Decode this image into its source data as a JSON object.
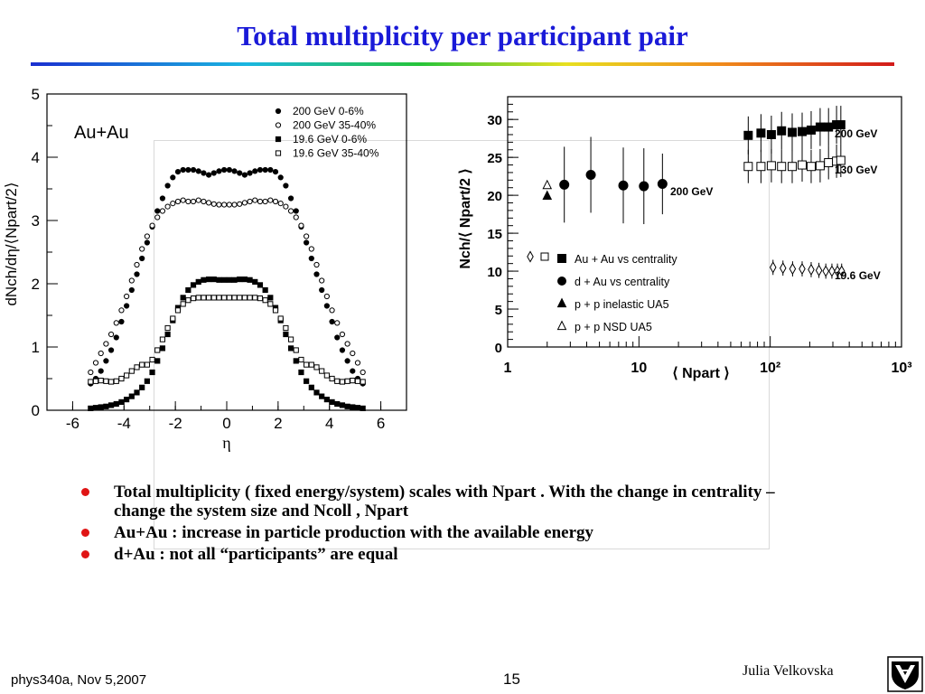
{
  "slide": {
    "title": "Total multiplicity per participant pair",
    "bullets": [
      "Total multiplicity ( fixed energy/system) scales with Npart . With the change in centrality – change the system size and Ncoll , Npart",
      "Au+Au : increase in particle production with the available energy",
      "d+Au :  not all “participants” are equal"
    ],
    "footer": {
      "course": "phys340a, Nov 5,2007",
      "page": "15",
      "author": "Julia Velkovska"
    },
    "colors": {
      "title": "#1a1ad8",
      "bullet": "#e01515"
    },
    "logo_icon": "university-shield-logo"
  },
  "chart_data": [
    {
      "type": "scatter",
      "label": "Au+Au",
      "xlabel": "η",
      "ylabel": "dNch/dη/⟨Npart/2⟩",
      "xlim": [
        -7,
        7
      ],
      "ylim": [
        0,
        5
      ],
      "xticks": [
        -6,
        -4,
        -2,
        0,
        2,
        4,
        6
      ],
      "yticks": [
        0,
        1,
        2,
        3,
        4,
        5
      ],
      "legend_position": "top-right",
      "series": [
        {
          "name": "200 GeV 0-6%",
          "marker": "filled-circle",
          "x": [
            -5.3,
            -5.1,
            -4.9,
            -4.7,
            -4.5,
            -4.3,
            -4.1,
            -3.9,
            -3.7,
            -3.5,
            -3.3,
            -3.1,
            -2.9,
            -2.7,
            -2.5,
            -2.3,
            -2.1,
            -1.9,
            -1.7,
            -1.5,
            -1.3,
            -1.1,
            -0.9,
            -0.7,
            -0.5,
            -0.3,
            -0.1,
            0.1,
            0.3,
            0.5,
            0.7,
            0.9,
            1.1,
            1.3,
            1.5,
            1.7,
            1.9,
            2.1,
            2.3,
            2.5,
            2.7,
            2.9,
            3.1,
            3.3,
            3.5,
            3.7,
            3.9,
            4.1,
            4.3,
            4.5,
            4.7,
            4.9,
            5.1,
            5.3
          ],
          "y": [
            0.42,
            0.5,
            0.62,
            0.78,
            0.95,
            1.15,
            1.4,
            1.65,
            1.9,
            2.15,
            2.4,
            2.65,
            2.9,
            3.15,
            3.35,
            3.55,
            3.68,
            3.77,
            3.8,
            3.8,
            3.8,
            3.78,
            3.75,
            3.72,
            3.75,
            3.78,
            3.8,
            3.8,
            3.78,
            3.75,
            3.72,
            3.75,
            3.78,
            3.8,
            3.8,
            3.8,
            3.77,
            3.68,
            3.55,
            3.35,
            3.15,
            2.9,
            2.65,
            2.4,
            2.15,
            1.9,
            1.65,
            1.4,
            1.15,
            0.95,
            0.78,
            0.62,
            0.5,
            0.42
          ]
        },
        {
          "name": "200 GeV 35-40%",
          "marker": "open-circle",
          "x": [
            -5.3,
            -5.1,
            -4.9,
            -4.7,
            -4.5,
            -4.3,
            -4.1,
            -3.9,
            -3.7,
            -3.5,
            -3.3,
            -3.1,
            -2.9,
            -2.7,
            -2.5,
            -2.3,
            -2.1,
            -1.9,
            -1.7,
            -1.5,
            -1.3,
            -1.1,
            -0.9,
            -0.7,
            -0.5,
            -0.3,
            -0.1,
            0.1,
            0.3,
            0.5,
            0.7,
            0.9,
            1.1,
            1.3,
            1.5,
            1.7,
            1.9,
            2.1,
            2.3,
            2.5,
            2.7,
            2.9,
            3.1,
            3.3,
            3.5,
            3.7,
            3.9,
            4.1,
            4.3,
            4.5,
            4.7,
            4.9,
            5.1,
            5.3
          ],
          "y": [
            0.6,
            0.75,
            0.9,
            1.05,
            1.2,
            1.38,
            1.58,
            1.8,
            2.05,
            2.3,
            2.55,
            2.75,
            2.92,
            3.05,
            3.15,
            3.22,
            3.27,
            3.3,
            3.32,
            3.3,
            3.3,
            3.32,
            3.3,
            3.28,
            3.26,
            3.25,
            3.25,
            3.25,
            3.25,
            3.26,
            3.28,
            3.3,
            3.32,
            3.3,
            3.3,
            3.32,
            3.3,
            3.27,
            3.22,
            3.15,
            3.05,
            2.92,
            2.75,
            2.55,
            2.3,
            2.05,
            1.8,
            1.58,
            1.38,
            1.2,
            1.05,
            0.9,
            0.75,
            0.6
          ]
        },
        {
          "name": "19.6 GeV 0-6%",
          "marker": "filled-square",
          "x": [
            -5.3,
            -5.1,
            -4.9,
            -4.7,
            -4.5,
            -4.3,
            -4.1,
            -3.9,
            -3.7,
            -3.5,
            -3.3,
            -3.1,
            -2.9,
            -2.7,
            -2.5,
            -2.3,
            -2.1,
            -1.9,
            -1.7,
            -1.5,
            -1.3,
            -1.1,
            -0.9,
            -0.7,
            -0.5,
            -0.3,
            -0.1,
            0.1,
            0.3,
            0.5,
            0.7,
            0.9,
            1.1,
            1.3,
            1.5,
            1.7,
            1.9,
            2.1,
            2.3,
            2.5,
            2.7,
            2.9,
            3.1,
            3.3,
            3.5,
            3.7,
            3.9,
            4.1,
            4.3,
            4.5,
            4.7,
            4.9,
            5.1,
            5.3
          ],
          "y": [
            0.03,
            0.04,
            0.05,
            0.06,
            0.08,
            0.1,
            0.13,
            0.17,
            0.22,
            0.28,
            0.36,
            0.46,
            0.6,
            0.78,
            0.98,
            1.2,
            1.42,
            1.62,
            1.78,
            1.9,
            1.98,
            2.03,
            2.06,
            2.07,
            2.07,
            2.06,
            2.06,
            2.06,
            2.06,
            2.07,
            2.07,
            2.06,
            2.03,
            1.98,
            1.9,
            1.78,
            1.62,
            1.42,
            1.2,
            0.98,
            0.78,
            0.6,
            0.46,
            0.36,
            0.28,
            0.22,
            0.17,
            0.13,
            0.1,
            0.08,
            0.06,
            0.05,
            0.04,
            0.03
          ]
        },
        {
          "name": "19.6 GeV 35-40%",
          "marker": "open-square",
          "x": [
            -5.3,
            -5.1,
            -4.9,
            -4.7,
            -4.5,
            -4.3,
            -4.1,
            -3.9,
            -3.7,
            -3.5,
            -3.3,
            -3.1,
            -2.9,
            -2.7,
            -2.5,
            -2.3,
            -2.1,
            -1.9,
            -1.7,
            -1.5,
            -1.3,
            -1.1,
            -0.9,
            -0.7,
            -0.5,
            -0.3,
            -0.1,
            0.1,
            0.3,
            0.5,
            0.7,
            0.9,
            1.1,
            1.3,
            1.5,
            1.7,
            1.9,
            2.1,
            2.3,
            2.5,
            2.7,
            2.9,
            3.1,
            3.3,
            3.5,
            3.7,
            3.9,
            4.1,
            4.3,
            4.5,
            4.7,
            4.9,
            5.1,
            5.3
          ],
          "y": [
            0.45,
            0.46,
            0.47,
            0.46,
            0.45,
            0.46,
            0.5,
            0.55,
            0.62,
            0.68,
            0.72,
            0.72,
            0.8,
            0.95,
            1.12,
            1.3,
            1.45,
            1.58,
            1.68,
            1.74,
            1.77,
            1.78,
            1.78,
            1.78,
            1.78,
            1.78,
            1.78,
            1.78,
            1.78,
            1.78,
            1.78,
            1.78,
            1.78,
            1.77,
            1.74,
            1.68,
            1.58,
            1.45,
            1.3,
            1.12,
            0.95,
            0.8,
            0.72,
            0.72,
            0.68,
            0.62,
            0.55,
            0.5,
            0.46,
            0.45,
            0.46,
            0.47,
            0.46,
            0.45
          ]
        }
      ]
    },
    {
      "type": "scatter",
      "xlabel": "⟨ Npart ⟩",
      "ylabel": "Nch/⟨ Npart/2 ⟩",
      "x_scale": "log",
      "xlim": [
        1,
        1000
      ],
      "ylim": [
        0,
        33
      ],
      "xtick_labels": [
        "1",
        "10",
        "10²",
        "10³"
      ],
      "yticks": [
        0,
        5,
        10,
        15,
        20,
        25,
        30
      ],
      "annotations": [
        "200 GeV",
        "200 GeV",
        "130 GeV",
        "19.6 GeV"
      ],
      "legend": [
        "Au + Au vs centrality",
        "d + Au vs centrality",
        "p + p inelastic UA5",
        "p + p NSD UA5"
      ],
      "legend_position": "middle-left",
      "series": [
        {
          "name": "Au + Au vs centrality",
          "energy": "200 GeV",
          "marker": "filled-square",
          "x": [
            68,
            85,
            102,
            122,
            147,
            175,
            205,
            240,
            278,
            320,
            345
          ],
          "y": [
            27.9,
            28.2,
            28.0,
            28.5,
            28.3,
            28.4,
            28.6,
            29.0,
            29.0,
            29.3,
            29.3
          ],
          "err": [
            2.5,
            2.5,
            2.5,
            2.5,
            2.5,
            2.5,
            2.5,
            2.5,
            2.5,
            2.5,
            2.5
          ]
        },
        {
          "name": "Au + Au vs centrality",
          "energy": "130 GeV",
          "marker": "open-square",
          "x": [
            68,
            85,
            102,
            122,
            147,
            175,
            205,
            240,
            278,
            320,
            345
          ],
          "y": [
            23.8,
            23.8,
            23.9,
            23.8,
            23.8,
            24.0,
            23.8,
            23.9,
            24.3,
            24.5,
            24.6
          ],
          "err": [
            2.2,
            2.2,
            2.2,
            2.2,
            2.2,
            2.2,
            2.2,
            2.2,
            2.2,
            2.2,
            2.2
          ]
        },
        {
          "name": "Au + Au vs centrality",
          "energy": "19.6 GeV",
          "marker": "open-diamond",
          "x": [
            105,
            125,
            148,
            175,
            205,
            235,
            265,
            295,
            325,
            350
          ],
          "y": [
            10.5,
            10.4,
            10.3,
            10.3,
            10.2,
            10.1,
            10.0,
            10.0,
            10.0,
            10.0
          ],
          "err": [
            1.0,
            1.0,
            1.0,
            1.0,
            1.0,
            1.0,
            1.0,
            1.0,
            1.0,
            1.0
          ]
        },
        {
          "name": "d + Au vs centrality",
          "marker": "filled-circle",
          "x": [
            2.7,
            4.3,
            7.6,
            10.9,
            15.1
          ],
          "y": [
            21.4,
            22.7,
            21.3,
            21.2,
            21.5
          ],
          "err": [
            5.0,
            5.0,
            5.0,
            5.0,
            4.0
          ]
        },
        {
          "name": "p + p inelastic UA5",
          "marker": "filled-triangle",
          "x": [
            2
          ],
          "y": [
            19.9
          ]
        },
        {
          "name": "p + p NSD UA5",
          "marker": "open-triangle",
          "x": [
            2
          ],
          "y": [
            21.3
          ]
        }
      ]
    }
  ]
}
